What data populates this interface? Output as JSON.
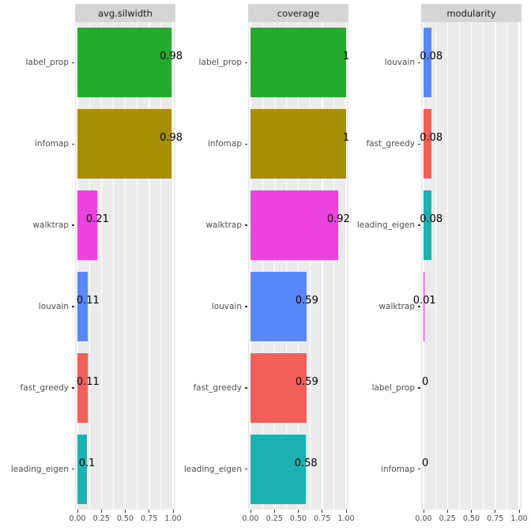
{
  "figure": {
    "background": "#FFFFFF",
    "panel_bg": "#EBEBEB",
    "strip_bg": "#D5D5D5",
    "grid_color": "#FFFFFF",
    "axis_text_color": "#4D4D4D",
    "tick_color": "#333333",
    "value_label_color": "#000000"
  },
  "x_axis": {
    "tick_labels": [
      "0.00",
      "0.25",
      "0.50",
      "0.75",
      "1.00"
    ],
    "tick_values": [
      0,
      0.25,
      0.5,
      0.75,
      1
    ],
    "minor_values": [
      0.125,
      0.375,
      0.625,
      0.875
    ],
    "range": [
      0,
      1
    ]
  },
  "chart_data": {
    "type": "bar",
    "orientation": "horizontal",
    "grid": true,
    "legend": "none",
    "facets": [
      {
        "title": "avg.silwidth",
        "bars": [
          {
            "label": "label_prop",
            "value": 0.98,
            "display": "0.98",
            "color": "#23AC2B"
          },
          {
            "label": "infomap",
            "value": 0.98,
            "display": "0.98",
            "color": "#A68F05"
          },
          {
            "label": "walktrap",
            "value": 0.21,
            "display": "0.21",
            "color": "#EE42DE"
          },
          {
            "label": "louvain",
            "value": 0.11,
            "display": "0.11",
            "color": "#5888F8"
          },
          {
            "label": "fast_greedy",
            "value": 0.11,
            "display": "0.11",
            "color": "#F25E58"
          },
          {
            "label": "leading_eigen",
            "value": 0.1,
            "display": "0.1",
            "color": "#1CB2B2"
          }
        ]
      },
      {
        "title": "coverage",
        "bars": [
          {
            "label": "label_prop",
            "value": 1,
            "display": "1",
            "color": "#23AC2B"
          },
          {
            "label": "infomap",
            "value": 1,
            "display": "1",
            "color": "#A68F05"
          },
          {
            "label": "walktrap",
            "value": 0.92,
            "display": "0.92",
            "color": "#EE42DE"
          },
          {
            "label": "louvain",
            "value": 0.59,
            "display": "0.59",
            "color": "#5888F8"
          },
          {
            "label": "fast_greedy",
            "value": 0.59,
            "display": "0.59",
            "color": "#F25E58"
          },
          {
            "label": "leading_eigen",
            "value": 0.58,
            "display": "0.58",
            "color": "#1CB2B2"
          }
        ]
      },
      {
        "title": "modularity",
        "bars": [
          {
            "label": "louvain",
            "value": 0.08,
            "display": "0.08",
            "color": "#5888F8"
          },
          {
            "label": "fast_greedy",
            "value": 0.08,
            "display": "0.08",
            "color": "#F25E58"
          },
          {
            "label": "leading_eigen",
            "value": 0.08,
            "display": "0.08",
            "color": "#1CB2B2"
          },
          {
            "label": "walktrap",
            "value": 0.01,
            "display": "0.01",
            "color": "#EE42DE"
          },
          {
            "label": "label_prop",
            "value": 0,
            "display": "0",
            "color": "#23AC2B"
          },
          {
            "label": "infomap",
            "value": 0,
            "display": "0",
            "color": "#A68F05"
          }
        ]
      }
    ],
    "series_colors": {
      "fast_greedy": "#F25E58",
      "infomap": "#A68F05",
      "label_prop": "#23AC2B",
      "leading_eigen": "#1CB2B2",
      "louvain": "#5888F8",
      "walktrap": "#EE42DE"
    }
  }
}
